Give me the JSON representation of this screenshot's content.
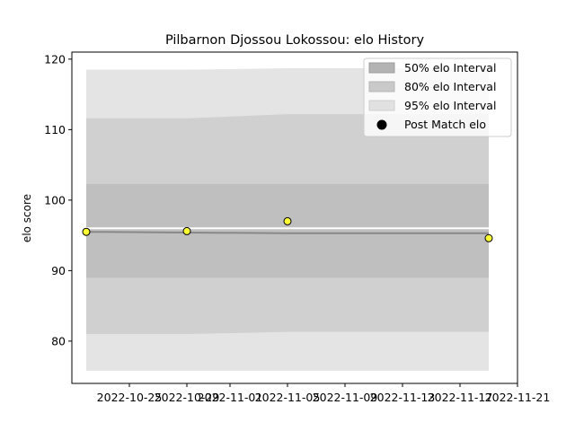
{
  "chart_data": {
    "type": "line",
    "title": "Pilbarnon Djossou Lokossou: elo History",
    "xlabel": "",
    "ylabel": "elo score",
    "x_ticks": [
      "2022-10-25",
      "2022-10-29",
      "2022-11-01",
      "2022-11-05",
      "2022-11-09",
      "2022-11-13",
      "2022-11-17",
      "2022-11-21"
    ],
    "y_ticks": [
      80,
      90,
      100,
      110,
      120
    ],
    "xlim": [
      "2022-10-21",
      "2022-11-21"
    ],
    "ylim": [
      74,
      121
    ],
    "legend_position": "top-right",
    "legend": {
      "band50": "50% elo Interval",
      "band80": "80% elo Interval",
      "band95": "95% elo Interval",
      "points": "Post Match elo"
    },
    "x": [
      "2022-10-22",
      "2022-10-29",
      "2022-11-05",
      "2022-11-19"
    ],
    "mean": [
      95.5,
      95.4,
      95.3,
      95.3
    ],
    "bands": {
      "band95": {
        "lower": [
          75.8,
          75.8,
          75.8,
          75.8
        ],
        "upper": [
          118.5,
          118.5,
          118.7,
          118.7
        ]
      },
      "band80": {
        "lower": [
          81.0,
          81.0,
          81.3,
          81.3
        ],
        "upper": [
          111.6,
          111.6,
          112.2,
          112.2
        ]
      },
      "band50": {
        "lower": [
          89.0,
          89.0,
          89.0,
          89.0
        ],
        "upper": [
          102.3,
          102.3,
          102.3,
          102.3
        ]
      }
    },
    "ci_line": [
      96.0,
      96.0,
      96.0,
      96.0
    ],
    "points": [
      {
        "x": "2022-10-22",
        "y": 95.5
      },
      {
        "x": "2022-10-29",
        "y": 95.6
      },
      {
        "x": "2022-11-05",
        "y": 97.0
      },
      {
        "x": "2022-11-19",
        "y": 94.6
      }
    ],
    "colors": {
      "band95": "#e4e4e4",
      "band80": "#d0d0d0",
      "band50": "#bfbfbf",
      "mean_line": "#888888",
      "ci_line": "#ffffff",
      "point_fill": "#ffff33",
      "point_edge": "#000000"
    }
  }
}
